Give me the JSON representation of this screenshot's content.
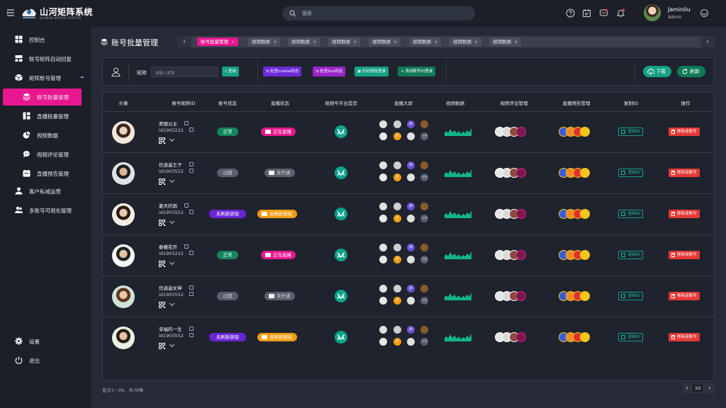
{
  "app": {
    "brand_name": "山河矩阵系统",
    "brand_sub": "SHANHE MATRIX SYSTEM",
    "search_placeholder": "搜索",
    "user_name": "Jaminliu",
    "user_role": "Admin"
  },
  "sidebar": {
    "items": [
      {
        "label": "控制台",
        "icon": "dashboard-icon"
      },
      {
        "label": "账号矩阵自动回复",
        "icon": "autoreply-icon"
      },
      {
        "label": "矩阵账号管理",
        "icon": "box-icon"
      },
      {
        "label": "账号批量管理",
        "icon": "layers-icon"
      },
      {
        "label": "直播批量管理",
        "icon": "grid-icon"
      },
      {
        "label": "视频数据",
        "icon": "pie-icon"
      },
      {
        "label": "视频评论管理",
        "icon": "comment-icon"
      },
      {
        "label": "直播预告管理",
        "icon": "calendar-icon"
      },
      {
        "label": "客户私域运营",
        "icon": "user-icon"
      },
      {
        "label": "多账号可视化管理",
        "icon": "users-icon"
      }
    ],
    "settings": "设置",
    "logout": "退出"
  },
  "page": {
    "title": "账号批量管理",
    "tabs": [
      "账号批量管理",
      "视频数据",
      "视频数据",
      "视频数据",
      "视频数据",
      "视频数据",
      "视频数据",
      "视频数据"
    ]
  },
  "filter": {
    "label": "昵称",
    "placeholder": "请输入昵称",
    "query": "查询",
    "check_cookie": "检查cookie状态",
    "check_live": "检查live状态",
    "scan_login": "扫码授权登录",
    "add_account": "添加账号ID登录",
    "download": "下载",
    "refresh": "刷新"
  },
  "table": {
    "headers": [
      "头像",
      "账号昵称ID",
      "账号状态",
      "直播状态",
      "视频号平台首页",
      "直播大屏",
      "视频数据",
      "视频评论管理",
      "直播预告管理",
      "复制ID",
      "操作"
    ],
    "copy_label": "复制ID",
    "remove_label": "移除该账号",
    "rows": [
      {
        "name": "美丽公主",
        "id": "id1903222",
        "status": "正常",
        "status_kind": "normal",
        "live": "正在直播",
        "live_kind": "on",
        "plus": "+9"
      },
      {
        "name": "任逍遥王子",
        "id": "id1903552",
        "status": "过期",
        "status_kind": "expired",
        "live": "未开通",
        "live_kind": "off",
        "plus": "+8"
      },
      {
        "name": "夏天的雨",
        "id": "id1903552",
        "status": "未刷新获取",
        "status_kind": "unref",
        "live": "未刷新获取",
        "live_kind": "unk",
        "plus": "+9"
      },
      {
        "name": "春暖花开",
        "id": "id1903222",
        "status": "正常",
        "status_kind": "normal",
        "live": "正在直播",
        "live_kind": "on",
        "plus": "+8"
      },
      {
        "name": "任逍遥女神",
        "id": "id1903552",
        "status": "过期",
        "status_kind": "expired",
        "live": "未开通",
        "live_kind": "off",
        "plus": "+8"
      },
      {
        "name": "幸福的一生",
        "id": "id1903552",
        "status": "未刷新获取",
        "status_kind": "unref",
        "live": "未刷新获取",
        "live_kind": "unk",
        "plus": "+9"
      }
    ]
  },
  "footer": {
    "info": "显示1~09，共78条",
    "page": "10"
  },
  "colors": {
    "accent": "#e8168f",
    "teal": "#16a085",
    "danger": "#e53935"
  }
}
